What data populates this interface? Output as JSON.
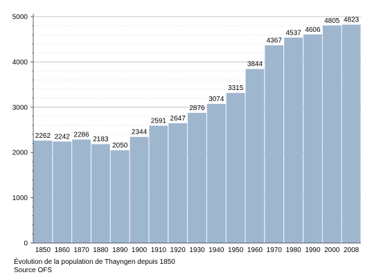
{
  "chart_data": {
    "type": "bar",
    "categories": [
      "1850",
      "1860",
      "1870",
      "1880",
      "1890",
      "1900",
      "1910",
      "1920",
      "1930",
      "1940",
      "1950",
      "1960",
      "1970",
      "1980",
      "1990",
      "2000",
      "2008"
    ],
    "values": [
      2262,
      2242,
      2286,
      2183,
      2050,
      2344,
      2591,
      2647,
      2876,
      3074,
      3315,
      3844,
      4367,
      4537,
      4606,
      4805,
      4823
    ],
    "ylim": [
      0,
      5000
    ],
    "yticks": [
      0,
      1000,
      2000,
      3000,
      4000,
      5000
    ],
    "grid": true,
    "bar_color": "#9fb6cf",
    "grid_color": "#b3b3b3",
    "caption": {
      "line1": "Évolution de la population de Thayngen depuis 1850",
      "line2": "Source OFS"
    }
  }
}
